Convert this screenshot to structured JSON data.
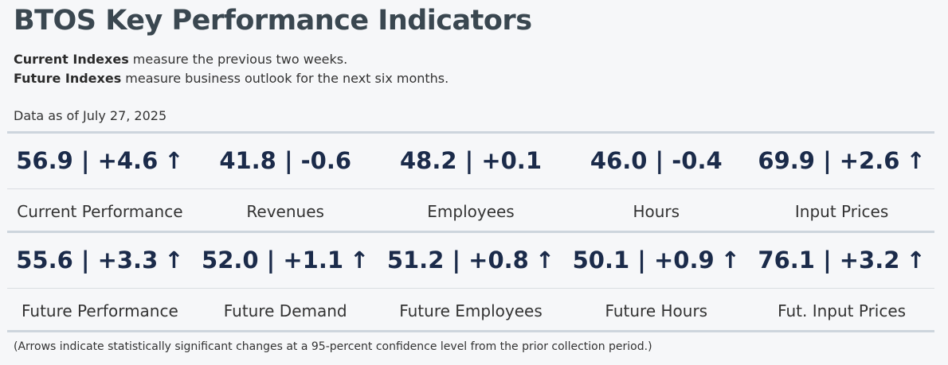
{
  "title": "BTOS Key Performance Indicators",
  "desc1": {
    "bold": "Current Indexes",
    "rest": " measure the previous two weeks."
  },
  "desc2": {
    "bold": "Future Indexes",
    "rest": " measure business outlook for the next six months."
  },
  "as_of": "Data as of July 27, 2025",
  "current": [
    {
      "value": "56.9 | +4.6",
      "arrow": "↑",
      "label": "Current Performance"
    },
    {
      "value": "41.8 | -0.6",
      "arrow": "",
      "label": "Revenues"
    },
    {
      "value": "48.2 | +0.1",
      "arrow": "",
      "label": "Employees"
    },
    {
      "value": "46.0 | -0.4",
      "arrow": "",
      "label": "Hours"
    },
    {
      "value": "69.9 | +2.6",
      "arrow": "↑",
      "label": "Input Prices"
    }
  ],
  "future": [
    {
      "value": "55.6 | +3.3",
      "arrow": "↑",
      "label": "Future Performance"
    },
    {
      "value": "52.0 | +1.1",
      "arrow": "↑",
      "label": "Future Demand"
    },
    {
      "value": "51.2 | +0.8",
      "arrow": "↑",
      "label": "Future Employees"
    },
    {
      "value": "50.1 | +0.9",
      "arrow": "↑",
      "label": "Future Hours"
    },
    {
      "value": "76.1 | +3.2",
      "arrow": "↑",
      "label": "Fut. Input Prices"
    }
  ],
  "footnote": "(Arrows indicate statistically significant changes at a 95-percent confidence level from the prior collection period.)"
}
